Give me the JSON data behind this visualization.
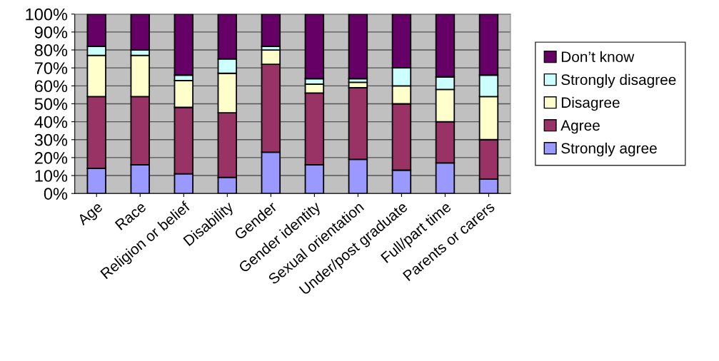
{
  "chart_data": {
    "type": "bar",
    "stacked": true,
    "categories": [
      "Age",
      "Race",
      "Religion or belief",
      "Disability",
      "Gender",
      "Gender identity",
      "Sexual orientation",
      "Under/post graduate",
      "Full/part time",
      "Parents or carers"
    ],
    "series": [
      {
        "name": "Strongly agree",
        "color": "#9999ff",
        "values": [
          14,
          16,
          11,
          9,
          23,
          16,
          19,
          13,
          17,
          8
        ]
      },
      {
        "name": "Agree",
        "color": "#993366",
        "values": [
          40,
          38,
          37,
          36,
          49,
          40,
          40,
          37,
          23,
          22
        ]
      },
      {
        "name": "Disagree",
        "color": "#ffffcc",
        "values": [
          23,
          23,
          15,
          22,
          8,
          5,
          3,
          10,
          18,
          24
        ]
      },
      {
        "name": "Strongly disagree",
        "color": "#ccffff",
        "values": [
          5,
          3,
          3,
          8,
          2,
          3,
          2,
          10,
          7,
          12
        ]
      },
      {
        "name": "Don’t know",
        "color": "#660066",
        "values": [
          18,
          20,
          34,
          25,
          18,
          36,
          36,
          30,
          35,
          34
        ]
      }
    ],
    "ylim": [
      0,
      100
    ],
    "yticks": [
      {
        "value": 0,
        "label": "0%"
      },
      {
        "value": 10,
        "label": "10%"
      },
      {
        "value": 20,
        "label": "20%"
      },
      {
        "value": 30,
        "label": "30%"
      },
      {
        "value": 40,
        "label": "40%"
      },
      {
        "value": 50,
        "label": "50%"
      },
      {
        "value": 60,
        "label": "60%"
      },
      {
        "value": 70,
        "label": "70%"
      },
      {
        "value": 80,
        "label": "80%"
      },
      {
        "value": 90,
        "label": "90%"
      },
      {
        "value": 100,
        "label": "100%"
      }
    ],
    "grid": "y",
    "legend": "right"
  }
}
